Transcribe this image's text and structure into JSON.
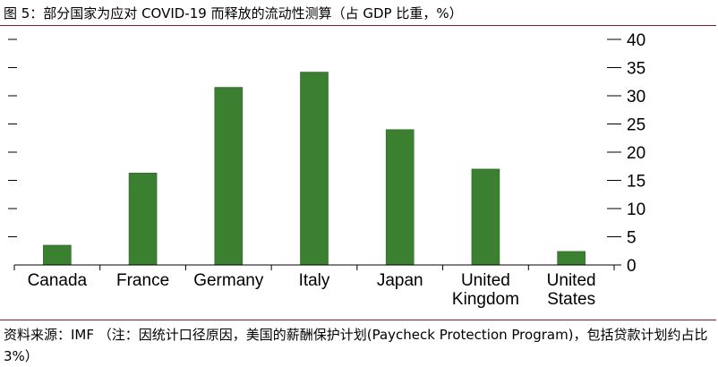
{
  "header": {
    "title": "图 5：部分国家为应对 COVID-19 而释放的流动性测算（占 GDP 比重，%）"
  },
  "footer": {
    "note": "资料来源：IMF （注：因统计口径原因，美国的薪酬保护计划(Paycheck Protection Program)，包括贷款计划约占比 3%）",
    "watermark_icon": "wechat-logo-icon"
  },
  "colors": {
    "bar": "#3a8030",
    "bar_edge": "#2b6524",
    "rule": "#7a1f2b"
  },
  "chart_data": {
    "type": "bar",
    "title": "图 5：部分国家为应对 COVID-19 而释放的流动性测算（占 GDP 比重，%）",
    "categories": [
      "Canada",
      "France",
      "Germany",
      "Italy",
      "Japan",
      "United Kingdom",
      "United States"
    ],
    "category_lines": [
      [
        "Canada"
      ],
      [
        "France"
      ],
      [
        "Germany"
      ],
      [
        "Italy"
      ],
      [
        "Japan"
      ],
      [
        "United",
        "Kingdom"
      ],
      [
        "United",
        "States"
      ]
    ],
    "values": [
      3.5,
      16.3,
      31.5,
      34.2,
      24.0,
      17.0,
      2.4
    ],
    "ylim": [
      0,
      40
    ],
    "yticks": [
      0,
      5,
      10,
      15,
      20,
      25,
      30,
      35,
      40
    ],
    "y_axis_side": "right",
    "grid": false,
    "legend": "none",
    "xlabel": "",
    "ylabel": ""
  }
}
